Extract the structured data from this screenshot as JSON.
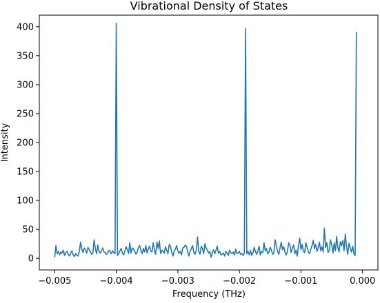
{
  "chart_data": {
    "type": "line",
    "title": "Vibrational Density of States",
    "xlabel": "Frequency (THz)",
    "ylabel": "Intensity",
    "xlim": [
      -0.00525,
      0.00025
    ],
    "ylim": [
      -20,
      420
    ],
    "xticks": [
      -0.005,
      -0.004,
      -0.003,
      -0.002,
      -0.001,
      0.0
    ],
    "xtick_labels": [
      "−0.005",
      "−0.004",
      "−0.003",
      "−0.002",
      "−0.001",
      "0.000"
    ],
    "yticks": [
      0,
      50,
      100,
      150,
      200,
      250,
      300,
      350,
      400
    ],
    "ytick_labels": [
      "0",
      "50",
      "100",
      "150",
      "200",
      "250",
      "300",
      "350",
      "400"
    ],
    "grid": false,
    "series": [
      {
        "color": "#1f77b4",
        "x_start": -0.005,
        "x_step": 2e-05,
        "values": [
          2,
          22,
          8,
          12,
          6,
          11,
          9,
          14,
          5,
          10,
          12,
          7,
          4,
          9,
          13,
          6,
          3,
          8,
          5,
          4,
          12,
          28,
          16,
          10,
          18,
          14,
          9,
          19,
          15,
          11,
          7,
          9,
          32,
          17,
          8,
          23,
          12,
          9,
          14,
          18,
          11,
          10,
          7,
          9,
          14,
          12,
          8,
          13,
          10,
          8,
          406,
          5,
          8,
          13,
          17,
          9,
          6,
          13,
          20,
          15,
          8,
          27,
          9,
          18,
          16,
          12,
          7,
          11,
          19,
          22,
          14,
          8,
          17,
          11,
          22,
          9,
          16,
          21,
          13,
          11,
          27,
          14,
          7,
          28,
          17,
          30,
          8,
          14,
          12,
          9,
          20,
          14,
          8,
          24,
          21,
          11,
          4,
          12,
          16,
          22,
          13,
          9,
          12,
          6,
          18,
          19,
          23,
          21,
          11,
          4,
          13,
          17,
          22,
          10,
          7,
          14,
          37,
          12,
          7,
          21,
          17,
          8,
          25,
          18,
          14,
          9,
          12,
          2,
          10,
          15,
          8,
          14,
          21,
          9,
          12,
          6,
          7,
          9,
          4,
          12,
          9,
          5,
          14,
          10,
          8,
          11,
          6,
          16,
          8,
          9,
          12,
          7,
          8,
          5,
          9,
          397,
          8,
          12,
          6,
          14,
          5,
          9,
          19,
          12,
          7,
          13,
          21,
          6,
          12,
          10,
          27,
          13,
          17,
          8,
          11,
          19,
          14,
          7,
          9,
          32,
          22,
          12,
          7,
          18,
          28,
          15,
          20,
          11,
          6,
          12,
          27,
          23,
          10,
          18,
          23,
          8,
          14,
          4,
          22,
          35,
          15,
          24,
          12,
          10,
          27,
          19,
          11,
          8,
          16,
          22,
          31,
          17,
          24,
          12,
          18,
          28,
          13,
          20,
          11,
          52,
          19,
          27,
          10,
          14,
          32,
          23,
          9,
          27,
          13,
          38,
          18,
          11,
          29,
          22,
          31,
          13,
          42,
          20,
          7,
          26,
          18,
          11,
          21,
          8,
          5,
          391
        ]
      }
    ]
  }
}
